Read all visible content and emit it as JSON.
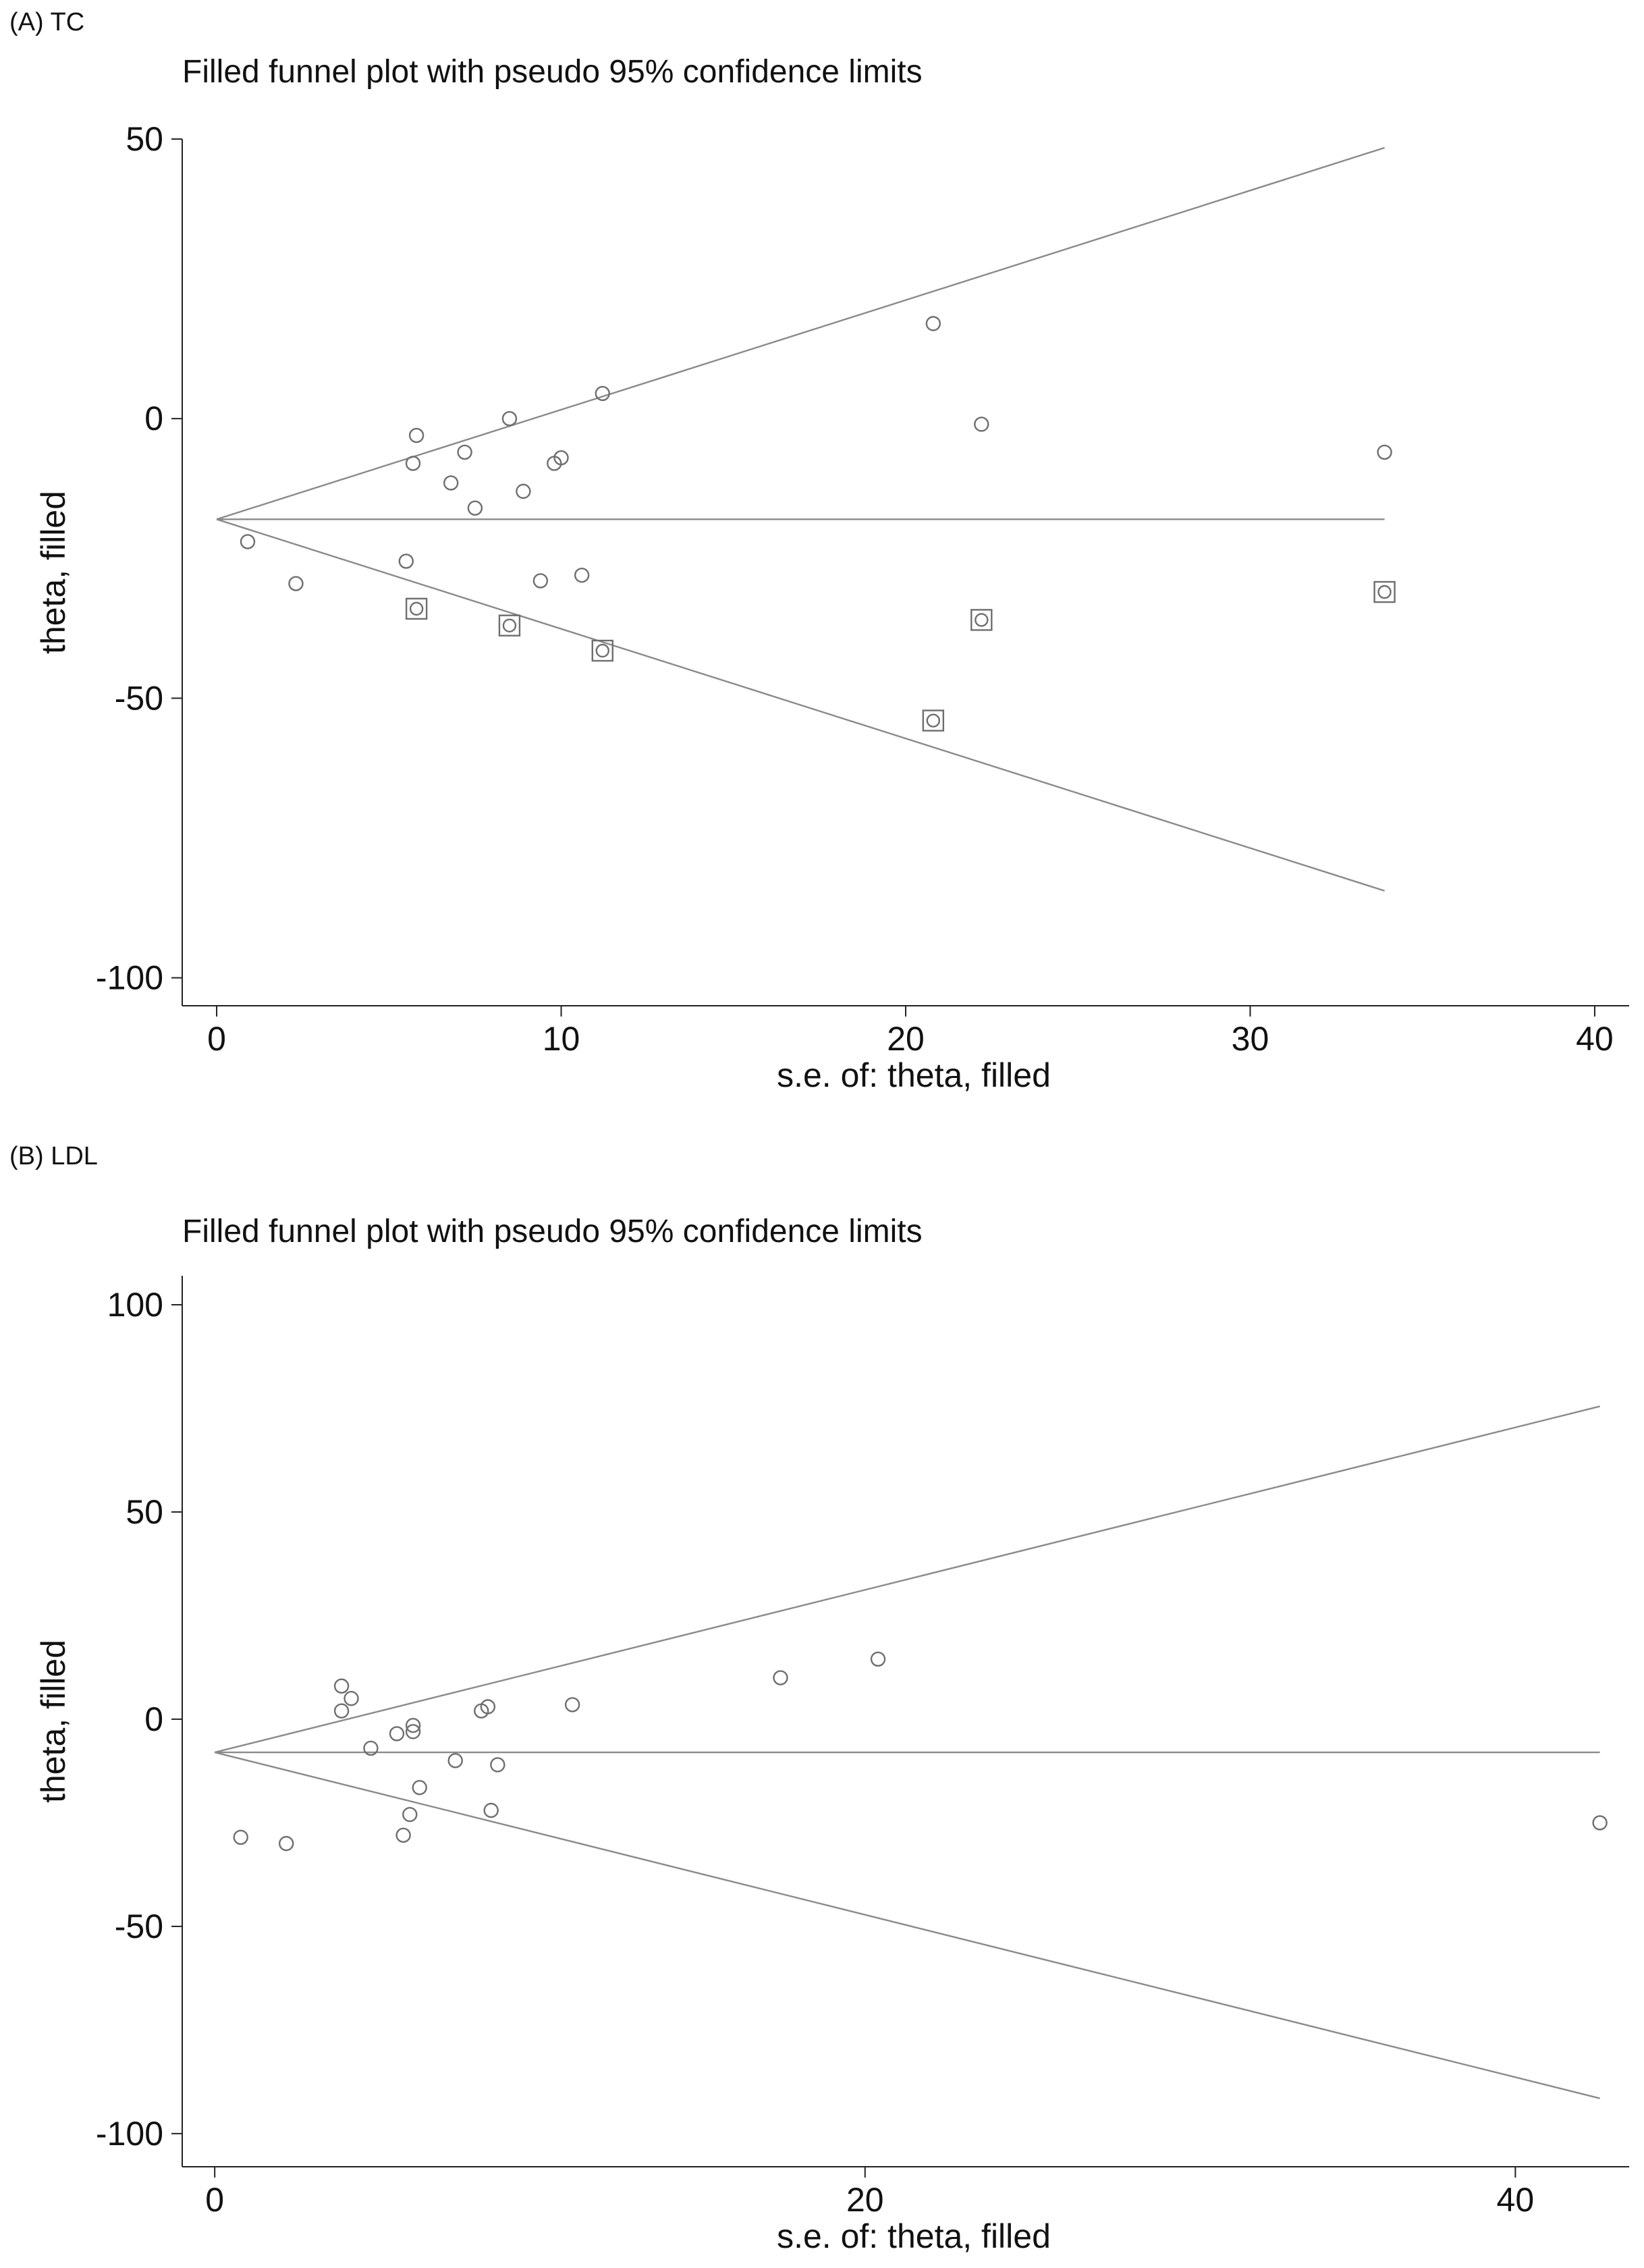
{
  "chart_data": [
    {
      "type": "scatter",
      "panel_label": "(A)  TC",
      "title": "Filled funnel plot with pseudo 95% confidence limits",
      "xlabel": "s.e. of: theta, filled",
      "ylabel": "theta, filled",
      "xlim": [
        -1,
        41
      ],
      "ylim": [
        -105,
        50
      ],
      "xticks": [
        0,
        10,
        20,
        30,
        40
      ],
      "yticks": [
        50,
        0,
        -50,
        -100
      ],
      "pooled_theta": -18,
      "funnel_max_se": 33.9,
      "series": [
        {
          "name": "observed",
          "marker": "circle",
          "points": [
            [
              0.9,
              -22
            ],
            [
              2.3,
              -29.5
            ],
            [
              5.5,
              -25.5
            ],
            [
              5.7,
              -8
            ],
            [
              5.8,
              -3
            ],
            [
              6.8,
              -11.5
            ],
            [
              7.2,
              -6
            ],
            [
              7.5,
              -16
            ],
            [
              8.5,
              0
            ],
            [
              8.9,
              -13
            ],
            [
              9.4,
              -29
            ],
            [
              9.8,
              -8
            ],
            [
              10.0,
              -7
            ],
            [
              10.6,
              -28
            ],
            [
              11.2,
              4.5
            ],
            [
              20.8,
              17
            ],
            [
              22.2,
              -1
            ],
            [
              33.9,
              -6
            ]
          ]
        },
        {
          "name": "filled",
          "marker": "square-circle",
          "points": [
            [
              5.8,
              -34
            ],
            [
              8.5,
              -37
            ],
            [
              11.2,
              -41.5
            ],
            [
              20.8,
              -54
            ],
            [
              22.2,
              -36
            ],
            [
              33.9,
              -31
            ]
          ]
        }
      ]
    },
    {
      "type": "scatter",
      "panel_label": "(B)  LDL",
      "title": "Filled funnel plot with pseudo 95% confidence limits",
      "xlabel": "s.e. of: theta, filled",
      "ylabel": "theta, filled",
      "xlim": [
        -1,
        43.5
      ],
      "ylim": [
        -108,
        107
      ],
      "xticks": [
        0,
        20,
        40
      ],
      "yticks": [
        100,
        50,
        0,
        -50,
        -100
      ],
      "pooled_theta": -8,
      "funnel_max_se": 42.6,
      "series": [
        {
          "name": "observed",
          "marker": "circle",
          "points": [
            [
              0.8,
              -28.5
            ],
            [
              2.2,
              -30
            ],
            [
              3.9,
              8
            ],
            [
              3.9,
              2
            ],
            [
              4.2,
              5
            ],
            [
              4.8,
              -7
            ],
            [
              5.6,
              -3.5
            ],
            [
              5.8,
              -28
            ],
            [
              6.0,
              -23
            ],
            [
              6.1,
              -1.5
            ],
            [
              6.1,
              -3
            ],
            [
              6.3,
              -16.5
            ],
            [
              7.4,
              -10
            ],
            [
              8.2,
              2
            ],
            [
              8.4,
              3
            ],
            [
              8.5,
              -22
            ],
            [
              8.7,
              -11
            ],
            [
              11.0,
              3.5
            ],
            [
              17.4,
              10
            ],
            [
              20.4,
              14.5
            ],
            [
              42.6,
              -25
            ]
          ]
        }
      ]
    }
  ]
}
